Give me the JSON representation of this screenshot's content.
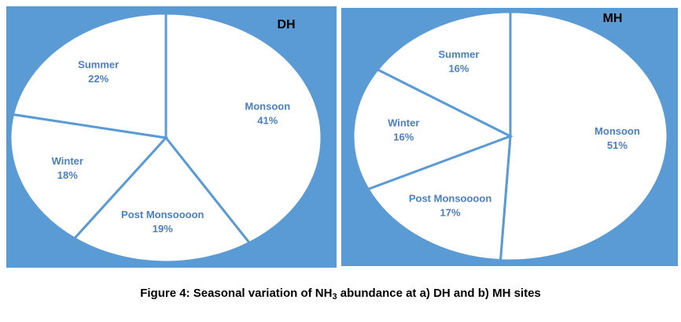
{
  "chart_data": [
    {
      "type": "pie",
      "title": "DH",
      "categories": [
        "Monsoon",
        "Post Monsoooon",
        "Winter",
        "Summer"
      ],
      "values": [
        41,
        19,
        18,
        22
      ],
      "value_labels": [
        "41%",
        "19%",
        "18%",
        "22%"
      ],
      "color": "#ffffff",
      "edge_color": "#5b9bd5",
      "label_color": "#4a7fc0",
      "background": "#5b9bd5"
    },
    {
      "type": "pie",
      "title": "MH",
      "categories": [
        "Monsoon",
        "Post Monsoooon",
        "Winter",
        "Summer"
      ],
      "values": [
        51,
        17,
        16,
        16
      ],
      "value_labels": [
        "51%",
        "17%",
        "16%",
        "16%"
      ],
      "color": "#ffffff",
      "edge_color": "#5b9bd5",
      "label_color": "#4a7fc0",
      "background": "#5b9bd5"
    }
  ],
  "caption": {
    "parts": [
      "Figure 4: Seasonal variation of NH",
      "3",
      " abundance at a) DH and b) MH sites"
    ]
  }
}
